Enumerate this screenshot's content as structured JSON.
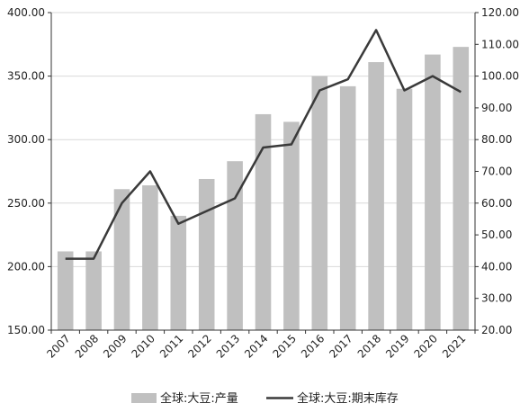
{
  "chart_data": {
    "type": "bar",
    "categories": [
      "2007",
      "2008",
      "2009",
      "2010",
      "2011",
      "2012",
      "2013",
      "2014",
      "2015",
      "2016",
      "2017",
      "2018",
      "2019",
      "2020",
      "2021"
    ],
    "series": [
      {
        "name": "全球:大豆:产量",
        "type": "bar",
        "axis": "left",
        "color": "#c0c0c0",
        "values": [
          212,
          212,
          261,
          264,
          240,
          269,
          283,
          320,
          314,
          350,
          342,
          361,
          340,
          367,
          373
        ]
      },
      {
        "name": "全球:大豆:期末库存",
        "type": "line",
        "axis": "right",
        "color": "#3a3a3a",
        "values": [
          42.5,
          42.5,
          60,
          70,
          53.5,
          57.5,
          61.5,
          77.5,
          78.5,
          95.5,
          99,
          114.5,
          95.5,
          100,
          95
        ]
      }
    ],
    "y_left": {
      "ylim": [
        150,
        400
      ],
      "ticks": [
        "150.00",
        "200.00",
        "250.00",
        "300.00",
        "350.00",
        "400.00"
      ],
      "tick_values": [
        150,
        200,
        250,
        300,
        350,
        400
      ]
    },
    "y_right": {
      "ylim": [
        20,
        120
      ],
      "ticks": [
        "20.00",
        "30.00",
        "40.00",
        "50.00",
        "60.00",
        "70.00",
        "80.00",
        "90.00",
        "100.00",
        "110.00",
        "120.00"
      ],
      "tick_values": [
        20,
        30,
        40,
        50,
        60,
        70,
        80,
        90,
        100,
        110,
        120
      ]
    },
    "grid": true,
    "legend_position": "bottom"
  }
}
